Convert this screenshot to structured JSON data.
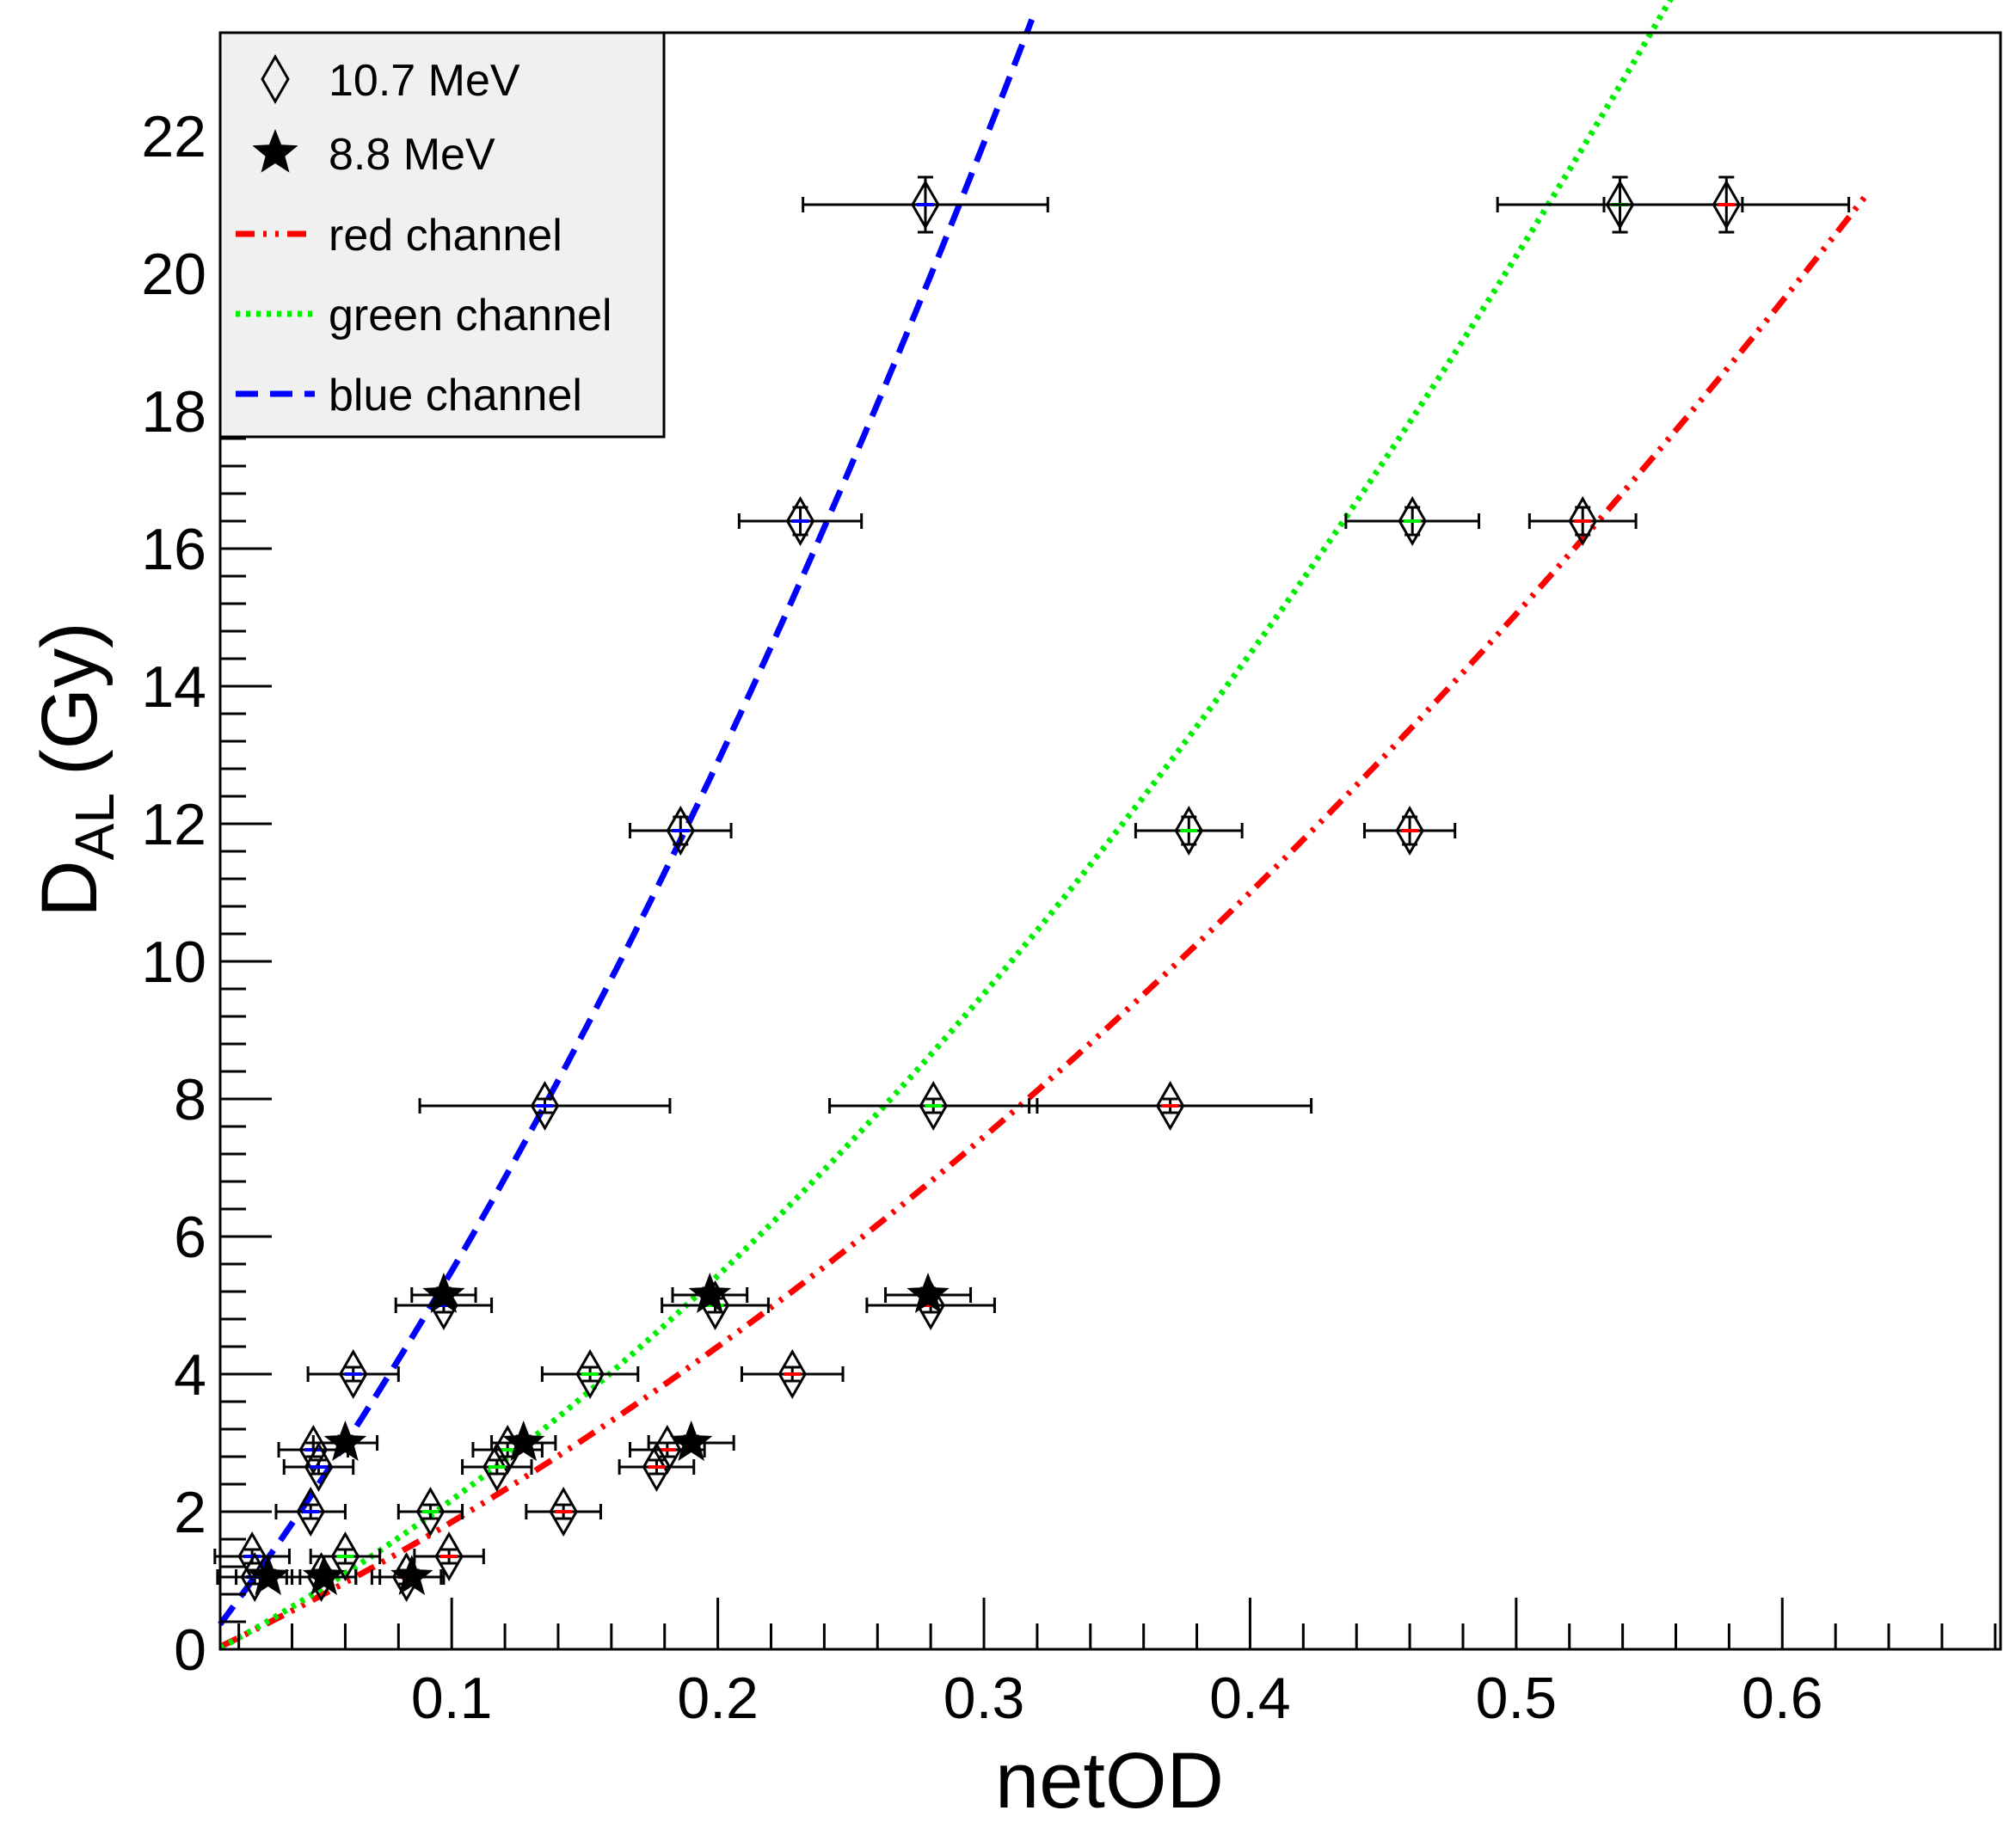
{
  "chart_data": {
    "type": "scatter",
    "xlabel": "netOD",
    "ylabel_main": "D",
    "ylabel_sub": "AL",
    "ylabel_unit": "(Gy)",
    "xlim": [
      0.013,
      0.682
    ],
    "ylim": [
      0,
      23.5
    ],
    "x_ticks": [
      0.1,
      0.2,
      0.3,
      0.4,
      0.5,
      0.6
    ],
    "x_tick_labels": [
      "0.1",
      "0.2",
      "0.3",
      "0.4",
      "0.5",
      "0.6"
    ],
    "y_ticks": [
      0,
      2,
      4,
      6,
      8,
      10,
      12,
      14,
      16,
      18,
      20,
      22
    ],
    "y_tick_labels": [
      "0",
      "2",
      "4",
      "6",
      "8",
      "10",
      "12",
      "14",
      "16",
      "18",
      "20",
      "22"
    ],
    "grid": false,
    "legend_position": "top-left",
    "legend": [
      {
        "label": "10.7 MeV",
        "kind": "diamond"
      },
      {
        "label": "8.8 MeV",
        "kind": "star"
      },
      {
        "label": "red channel",
        "kind": "dashdotdot",
        "color": "#ff0000"
      },
      {
        "label": "green channel",
        "kind": "dotted",
        "color": "#00ee00"
      },
      {
        "label": "blue channel",
        "kind": "dashed",
        "color": "#0000ff"
      }
    ],
    "curves": [
      {
        "channel": "red",
        "color": "#ff0000",
        "style": "dashdotdot",
        "xmin": 0.013,
        "xmax": 0.632,
        "coeffs": [
          -0.2,
          18.0,
          25.0
        ]
      },
      {
        "channel": "green",
        "color": "#00ee00",
        "style": "dotted",
        "xmin": 0.013,
        "xmax": 0.6,
        "coeffs": [
          -0.25,
          20.0,
          42.0
        ]
      },
      {
        "channel": "blue",
        "color": "#0000ff",
        "style": "dashed",
        "xmin": 0.013,
        "xmax": 0.318,
        "coeffs": [
          -0.3,
          50.0,
          80.0
        ]
      }
    ],
    "series": [
      {
        "name": "10.7 MeV",
        "marker": "diamond",
        "points": [
          {
            "channel": "blue",
            "x": 0.278,
            "y": 21.0,
            "xerr": 0.046,
            "yerr": 0.4
          },
          {
            "channel": "blue",
            "x": 0.231,
            "y": 16.4,
            "xerr": 0.023,
            "yerr": 0.2
          },
          {
            "channel": "blue",
            "x": 0.186,
            "y": 11.9,
            "xerr": 0.019,
            "yerr": 0.2
          },
          {
            "channel": "blue",
            "x": 0.135,
            "y": 7.9,
            "xerr": 0.047,
            "yerr": 0.1
          },
          {
            "channel": "blue",
            "x": 0.097,
            "y": 5.0,
            "xerr": 0.018,
            "yerr": 0.1
          },
          {
            "channel": "blue",
            "x": 0.063,
            "y": 4.0,
            "xerr": 0.017,
            "yerr": 0.1
          },
          {
            "channel": "blue",
            "x": 0.048,
            "y": 2.9,
            "xerr": 0.013,
            "yerr": 0.1
          },
          {
            "channel": "blue",
            "x": 0.05,
            "y": 2.65,
            "xerr": 0.013,
            "yerr": 0.1
          },
          {
            "channel": "blue",
            "x": 0.047,
            "y": 2.0,
            "xerr": 0.013,
            "yerr": 0.1
          },
          {
            "channel": "blue",
            "x": 0.025,
            "y": 1.35,
            "xerr": 0.014,
            "yerr": 0.1
          },
          {
            "channel": "blue",
            "x": 0.026,
            "y": 1.05,
            "xerr": 0.014,
            "yerr": 0.1
          },
          {
            "channel": "green",
            "x": 0.539,
            "y": 21.0,
            "xerr": 0.046,
            "yerr": 0.4
          },
          {
            "channel": "green",
            "x": 0.461,
            "y": 16.4,
            "xerr": 0.025,
            "yerr": 0.2
          },
          {
            "channel": "green",
            "x": 0.377,
            "y": 11.9,
            "xerr": 0.02,
            "yerr": 0.2
          },
          {
            "channel": "green",
            "x": 0.281,
            "y": 7.9,
            "xerr": 0.039,
            "yerr": 0.1
          },
          {
            "channel": "green",
            "x": 0.199,
            "y": 5.0,
            "xerr": 0.02,
            "yerr": 0.1
          },
          {
            "channel": "green",
            "x": 0.152,
            "y": 4.0,
            "xerr": 0.018,
            "yerr": 0.1
          },
          {
            "channel": "green",
            "x": 0.121,
            "y": 2.9,
            "xerr": 0.013,
            "yerr": 0.1
          },
          {
            "channel": "green",
            "x": 0.117,
            "y": 2.65,
            "xerr": 0.013,
            "yerr": 0.1
          },
          {
            "channel": "green",
            "x": 0.092,
            "y": 2.0,
            "xerr": 0.012,
            "yerr": 0.1
          },
          {
            "channel": "green",
            "x": 0.06,
            "y": 1.35,
            "xerr": 0.013,
            "yerr": 0.1
          },
          {
            "channel": "green",
            "x": 0.051,
            "y": 1.05,
            "xerr": 0.013,
            "yerr": 0.1
          },
          {
            "channel": "red",
            "x": 0.579,
            "y": 21.0,
            "xerr": 0.046,
            "yerr": 0.4
          },
          {
            "channel": "red",
            "x": 0.525,
            "y": 16.4,
            "xerr": 0.02,
            "yerr": 0.2
          },
          {
            "channel": "red",
            "x": 0.46,
            "y": 11.9,
            "xerr": 0.017,
            "yerr": 0.2
          },
          {
            "channel": "red",
            "x": 0.37,
            "y": 7.9,
            "xerr": 0.053,
            "yerr": 0.1
          },
          {
            "channel": "red",
            "x": 0.28,
            "y": 5.0,
            "xerr": 0.024,
            "yerr": 0.1
          },
          {
            "channel": "red",
            "x": 0.228,
            "y": 4.0,
            "xerr": 0.019,
            "yerr": 0.1
          },
          {
            "channel": "red",
            "x": 0.181,
            "y": 2.9,
            "xerr": 0.014,
            "yerr": 0.1
          },
          {
            "channel": "red",
            "x": 0.177,
            "y": 2.65,
            "xerr": 0.014,
            "yerr": 0.1
          },
          {
            "channel": "red",
            "x": 0.142,
            "y": 2.0,
            "xerr": 0.014,
            "yerr": 0.1
          },
          {
            "channel": "red",
            "x": 0.099,
            "y": 1.35,
            "xerr": 0.013,
            "yerr": 0.1
          },
          {
            "channel": "red",
            "x": 0.083,
            "y": 1.05,
            "xerr": 0.013,
            "yerr": 0.1
          }
        ]
      },
      {
        "name": "8.8 MeV",
        "marker": "star",
        "points": [
          {
            "channel": "blue",
            "x": 0.097,
            "y": 5.15,
            "xerr": 0.012,
            "yerr": 0.1
          },
          {
            "channel": "blue",
            "x": 0.06,
            "y": 3.0,
            "xerr": 0.012,
            "yerr": 0.1
          },
          {
            "channel": "blue",
            "x": 0.031,
            "y": 1.05,
            "xerr": 0.012,
            "yerr": 0.1
          },
          {
            "channel": "green",
            "x": 0.197,
            "y": 5.15,
            "xerr": 0.014,
            "yerr": 0.1
          },
          {
            "channel": "green",
            "x": 0.127,
            "y": 3.0,
            "xerr": 0.012,
            "yerr": 0.1
          },
          {
            "channel": "green",
            "x": 0.052,
            "y": 1.05,
            "xerr": 0.012,
            "yerr": 0.1
          },
          {
            "channel": "red",
            "x": 0.279,
            "y": 5.15,
            "xerr": 0.016,
            "yerr": 0.1
          },
          {
            "channel": "red",
            "x": 0.19,
            "y": 3.0,
            "xerr": 0.016,
            "yerr": 0.1
          },
          {
            "channel": "red",
            "x": 0.085,
            "y": 1.05,
            "xerr": 0.012,
            "yerr": 0.1
          }
        ]
      }
    ]
  }
}
